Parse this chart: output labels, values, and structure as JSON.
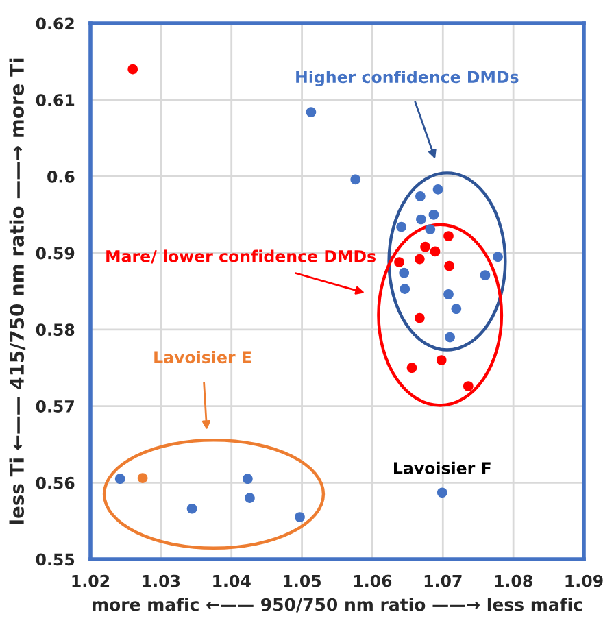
{
  "chart_data": {
    "type": "scatter",
    "xlabel": "more mafic ←—— 950/750 nm ratio ——→ less mafic",
    "ylabel": "less Ti ←—— 415/750 nm ratio ——→ more Ti",
    "series": [
      {
        "color": "#4472c4",
        "x": [
          1.0513,
          1.0576,
          1.0693,
          1.0668,
          1.0687,
          1.0669,
          1.0641,
          1.0682,
          1.0778,
          1.0645,
          1.076,
          1.0646,
          1.0708,
          1.0719,
          1.071,
          1.0242,
          1.0423,
          1.0426,
          1.0344,
          1.0497,
          1.0699
        ],
        "values": [
          0.6084,
          0.5996,
          0.5983,
          0.5974,
          0.595,
          0.5944,
          0.5934,
          0.5931,
          0.5895,
          0.5874,
          0.5871,
          0.5853,
          0.5846,
          0.5827,
          0.579,
          0.5605,
          0.5605,
          0.558,
          0.5566,
          0.5555,
          0.5587
        ]
      },
      {
        "color": "#ff0000",
        "x": [
          1.026,
          1.0708,
          1.0675,
          1.0689,
          1.0638,
          1.0667,
          1.0709,
          1.0667,
          1.0656,
          1.0698,
          1.0736
        ],
        "values": [
          0.614,
          0.5922,
          0.5908,
          0.5902,
          0.5888,
          0.5892,
          0.5883,
          0.5815,
          0.575,
          0.576,
          0.5726
        ]
      },
      {
        "color": "#ed7d31",
        "x": [
          1.0274
        ],
        "values": [
          0.5606
        ]
      }
    ],
    "annotations": [
      "Higher confidence DMDs",
      "Mare/ lower confidence DMDs",
      "Lavoisier E",
      {
        "text": "Lavoisier F",
        "x": 1.0699,
        "y": 0.5587
      }
    ],
    "xlim": [
      1.02,
      1.09
    ],
    "ylim": [
      0.55,
      0.62
    ],
    "xticks": [
      1.02,
      1.03,
      1.04,
      1.05,
      1.06,
      1.07,
      1.08,
      1.09
    ],
    "yticks": [
      0.55,
      0.56,
      0.57,
      0.58,
      0.59,
      0.6,
      0.61,
      0.62
    ],
    "grid": true,
    "marker": "circle",
    "legend": false
  }
}
